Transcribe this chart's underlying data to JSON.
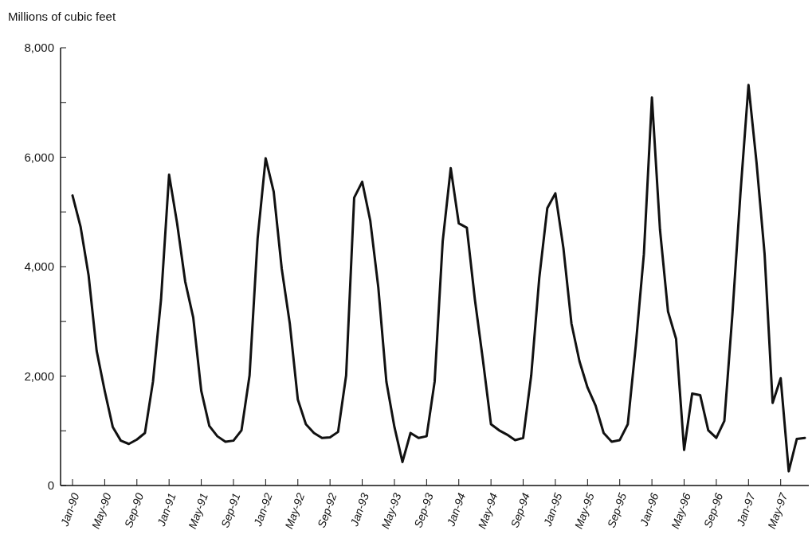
{
  "chart_data": {
    "type": "line",
    "ylabel": "Millions of cubic feet",
    "categories": [
      "Jan-90",
      null,
      null,
      null,
      "May-90",
      null,
      null,
      null,
      "Sep-90",
      null,
      null,
      null,
      "Jan-91",
      null,
      null,
      null,
      "May-91",
      null,
      null,
      null,
      "Sep-91",
      null,
      null,
      null,
      "Jan-92",
      null,
      null,
      null,
      "May-92",
      null,
      null,
      null,
      "Sep-92",
      null,
      null,
      null,
      "Jan-93",
      null,
      null,
      null,
      "May-93",
      null,
      null,
      null,
      "Sep-93",
      null,
      null,
      null,
      "Jan-94",
      null,
      null,
      null,
      "May-94",
      null,
      null,
      null,
      "Sep-94",
      null,
      null,
      null,
      "Jan-95",
      null,
      null,
      null,
      "May-95",
      null,
      null,
      null,
      "Sep-95",
      null,
      null,
      null,
      "Jan-96",
      null,
      null,
      null,
      "May-96",
      null,
      null,
      null,
      "Sep-96",
      null,
      null,
      null,
      "Jan-97",
      null,
      null,
      null,
      "May-97",
      null,
      null,
      null
    ],
    "series": [
      {
        "color": "#111111",
        "values": [
          5300,
          4730,
          3840,
          2460,
          1730,
          1070,
          820,
          760,
          840,
          960,
          1900,
          3400,
          5680,
          4790,
          3730,
          3070,
          1730,
          1090,
          900,
          800,
          820,
          1010,
          2010,
          4510,
          5980,
          5370,
          3960,
          2960,
          1570,
          1120,
          960,
          870,
          880,
          980,
          2010,
          5260,
          5550,
          4840,
          3620,
          1900,
          1070,
          430,
          960,
          870,
          900,
          1900,
          4460,
          5800,
          4790,
          4710,
          3400,
          2290,
          1120,
          1010,
          930,
          830,
          870,
          2010,
          3790,
          5070,
          5340,
          4340,
          2960,
          2270,
          1790,
          1460,
          960,
          800,
          830,
          1120,
          2570,
          4230,
          7090,
          4680,
          3180,
          2680,
          650,
          1680,
          1650,
          1010,
          870,
          1180,
          3130,
          5340,
          7320,
          5900,
          4230,
          1510,
          1960,
          260,
          850,
          870
        ]
      }
    ],
    "ylim": [
      0,
      8000
    ],
    "yticks": [
      0,
      {
        "value": 1000,
        "label": null
      },
      {
        "value": 2000,
        "label": "2,000"
      },
      {
        "value": 3000,
        "label": null
      },
      {
        "value": 4000,
        "label": "4,000"
      },
      {
        "value": 5000,
        "label": null
      },
      {
        "value": 6000,
        "label": "6,000"
      },
      {
        "value": 7000,
        "label": null
      },
      {
        "value": 8000,
        "label": "8,000"
      }
    ],
    "grid": false,
    "marker": "none",
    "line_style": "solid"
  }
}
